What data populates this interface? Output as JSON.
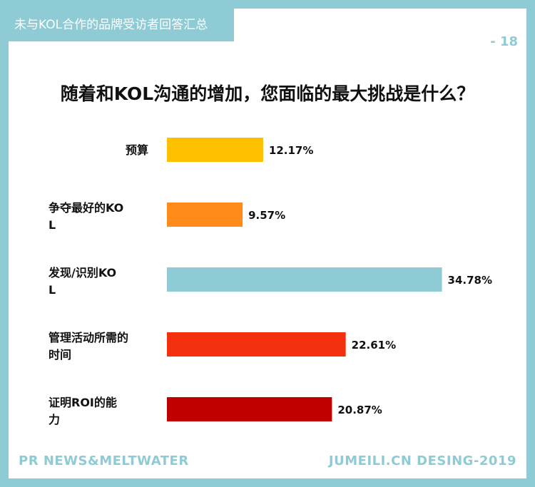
{
  "header": {
    "section_tag": "未与KOL合作的品牌受访者回答汇总",
    "page_number": "- 18"
  },
  "footer": {
    "left": "PR NEWS&MELTWATER",
    "right": "JUMEILI.CN DESING-2019"
  },
  "colors": {
    "accent": "#8ecbd4"
  },
  "chart_data": {
    "type": "bar",
    "orientation": "horizontal",
    "title": "随着和KOL沟通的增加，您面临的最大挑战是什么？",
    "categories": [
      "预算",
      "争夺最好的KOL",
      "发现/识别KOL",
      "管理活动所需的时间",
      "证明ROI的能力"
    ],
    "values": [
      12.17,
      9.57,
      34.78,
      22.61,
      20.87
    ],
    "value_labels": [
      "12.17%",
      "9.57%",
      "34.78%",
      "22.61%",
      "20.87%"
    ],
    "bar_colors": [
      "#ffc000",
      "#ff8c1a",
      "#8ecbd4",
      "#f5300e",
      "#c00000"
    ],
    "xlim": [
      0,
      35
    ],
    "grid": false,
    "legend": "none"
  }
}
